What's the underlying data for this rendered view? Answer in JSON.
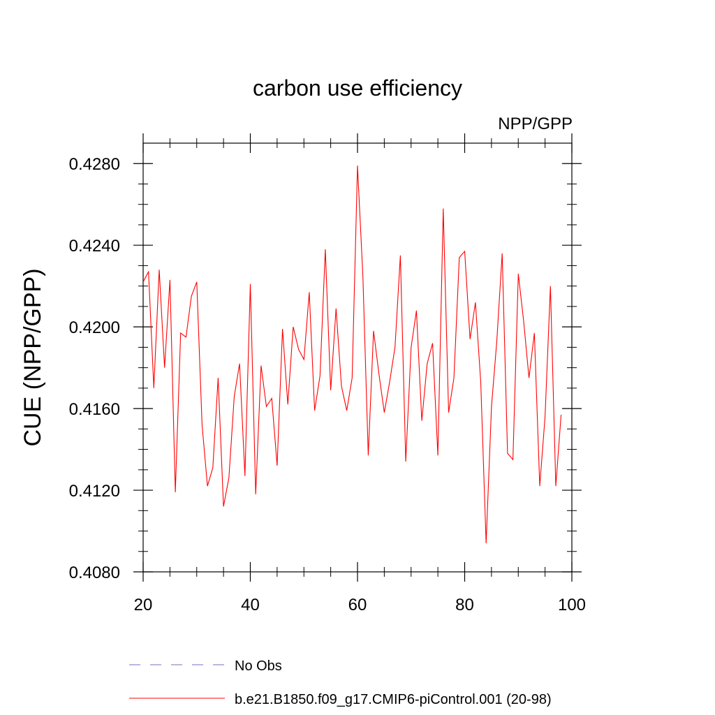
{
  "chart_data": {
    "type": "line",
    "title": "carbon use efficiency",
    "subtitle": "NPP/GPP",
    "xlabel": "",
    "ylabel": "CUE  (NPP/GPP)",
    "xlim": [
      20,
      100
    ],
    "ylim": [
      0.408,
      0.429
    ],
    "x_ticks": [
      20,
      40,
      60,
      80,
      100
    ],
    "x_tick_labels": [
      "20",
      "40",
      "60",
      "80",
      "100"
    ],
    "y_ticks": [
      0.408,
      0.412,
      0.416,
      0.42,
      0.424,
      0.428
    ],
    "y_tick_labels": [
      "0.4080",
      "0.4120",
      "0.4160",
      "0.4200",
      "0.4240",
      "0.4280"
    ],
    "grid": false,
    "legend_position": "bottom",
    "colors": {
      "model": "#ff0000",
      "obs": "#7070c0",
      "axis": "#000000"
    },
    "legend": [
      {
        "label": "No Obs",
        "style": "dashed",
        "color": "#7070c0"
      },
      {
        "label": "b.e21.B1850.f09_g17.CMIP6-piControl.001 (20-98)",
        "style": "solid",
        "color": "#ff0000"
      }
    ],
    "series": [
      {
        "x": [
          20,
          21,
          22,
          23,
          24,
          25,
          26,
          27,
          28,
          29,
          30,
          31,
          32,
          33,
          34,
          35,
          36,
          37,
          38,
          39,
          40,
          41,
          42,
          43,
          44,
          45,
          46,
          47,
          48,
          49,
          50,
          51,
          52,
          53,
          54,
          55,
          56,
          57,
          58,
          59,
          60,
          61,
          62,
          63,
          64,
          65,
          66,
          67,
          68,
          69,
          70,
          71,
          72,
          73,
          74,
          75,
          76,
          77,
          78,
          79,
          80,
          81,
          82,
          83,
          84,
          85,
          86,
          87,
          88,
          89,
          90,
          91,
          92,
          93,
          94,
          95,
          96,
          97,
          98
        ],
        "values": [
          0.4222,
          0.4227,
          0.417,
          0.4228,
          0.418,
          0.4223,
          0.4119,
          0.4197,
          0.4195,
          0.4215,
          0.4222,
          0.4152,
          0.4122,
          0.4131,
          0.4175,
          0.4112,
          0.4126,
          0.4166,
          0.4182,
          0.4127,
          0.4221,
          0.4118,
          0.4181,
          0.4161,
          0.4165,
          0.4132,
          0.4199,
          0.4162,
          0.42,
          0.4189,
          0.4184,
          0.4217,
          0.4159,
          0.4176,
          0.4238,
          0.4169,
          0.4209,
          0.4171,
          0.4159,
          0.4175,
          0.4279,
          0.4225,
          0.4137,
          0.4198,
          0.4177,
          0.4158,
          0.4173,
          0.419,
          0.4235,
          0.4134,
          0.419,
          0.4208,
          0.4154,
          0.4182,
          0.4192,
          0.4137,
          0.4258,
          0.4158,
          0.4175,
          0.4234,
          0.4237,
          0.4194,
          0.4212,
          0.4173,
          0.4094,
          0.4161,
          0.4193,
          0.4236,
          0.4138,
          0.4135,
          0.4226,
          0.4203,
          0.4175,
          0.4197,
          0.4122,
          0.4156,
          0.422,
          0.4122,
          0.4157
        ]
      }
    ]
  }
}
